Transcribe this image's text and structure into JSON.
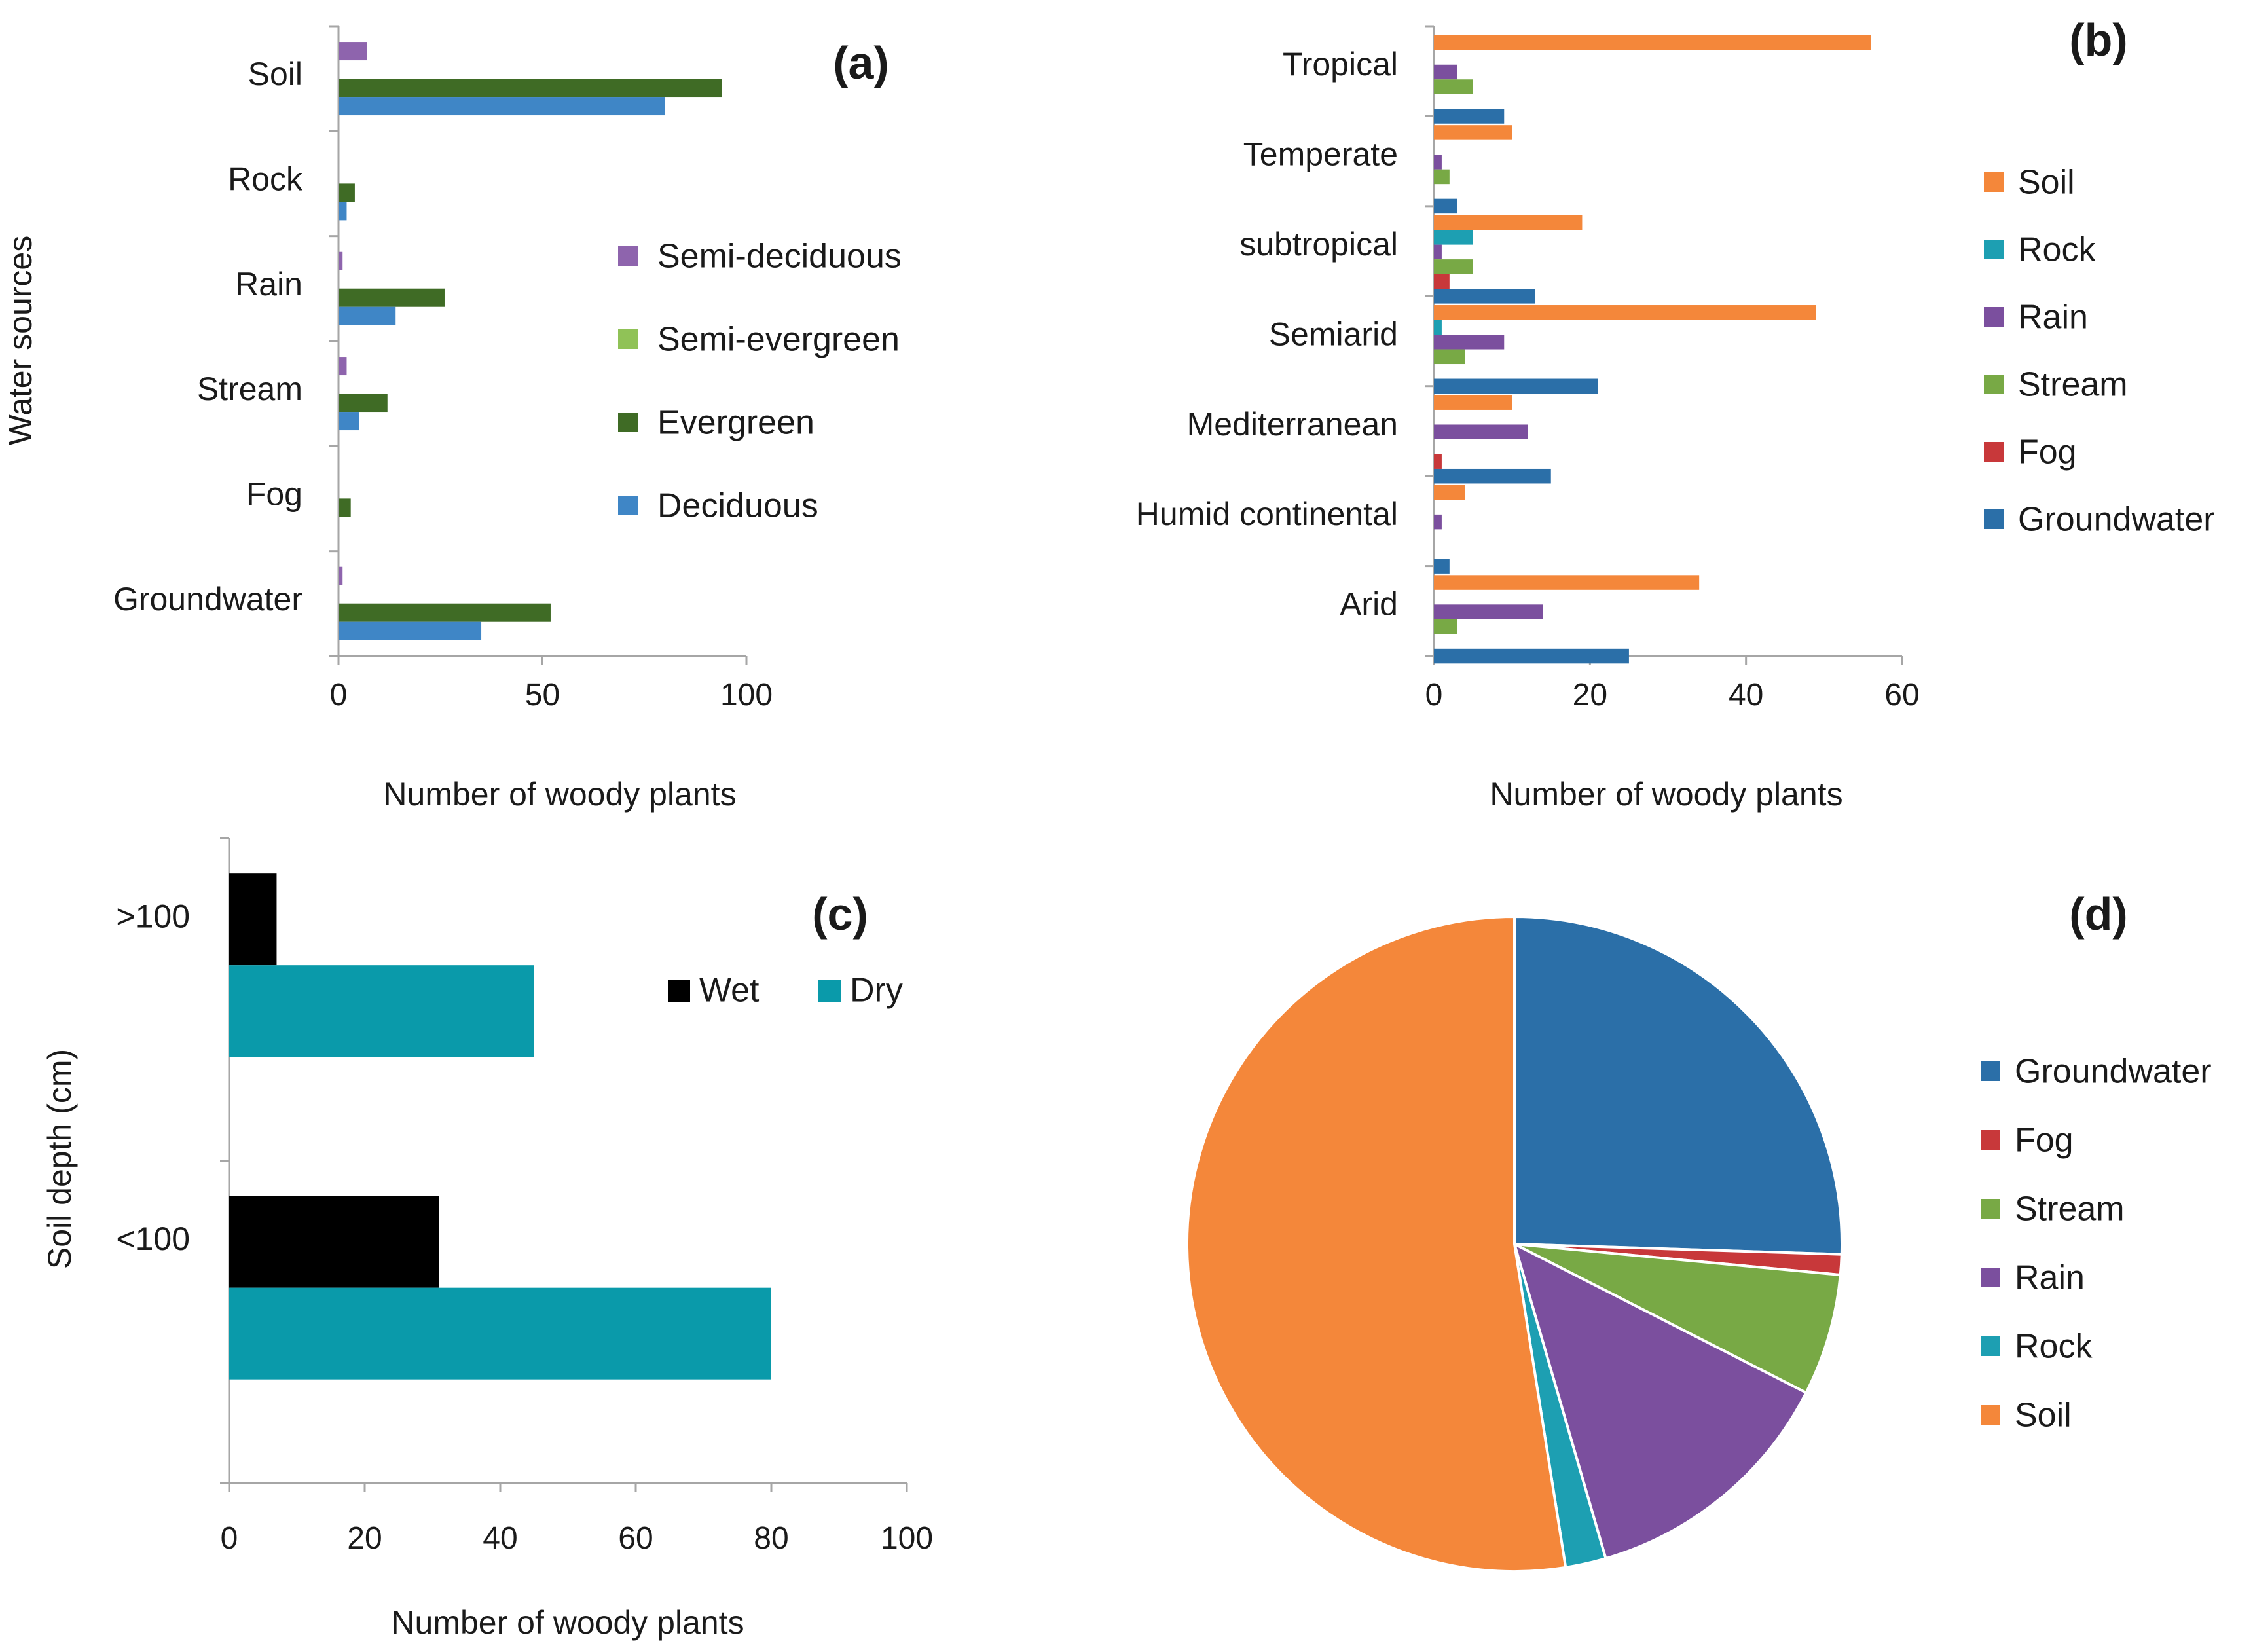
{
  "colors": {
    "semi_deciduous": "#8e64ad",
    "semi_evergreen": "#90c257",
    "evergreen": "#3f6b25",
    "deciduous": "#3f86c6",
    "soil": "#f4873a",
    "rock": "#1d9fb2",
    "rain": "#7b4f9e",
    "stream": "#78a945",
    "fog": "#c8383a",
    "groundwater": "#2b6fa8",
    "wet": "#000000",
    "dry": "#0a9aaa"
  },
  "chart_data": [
    {
      "id": "a",
      "type": "bar",
      "orientation": "horizontal",
      "panel_label": "(a)",
      "categories": [
        "Soil",
        "Rock",
        "Rain",
        "Stream",
        "Fog",
        "Groundwater"
      ],
      "series": [
        {
          "name": "Semi-deciduous",
          "color_key": "semi_deciduous",
          "values": [
            7,
            0,
            1,
            2,
            0,
            1
          ]
        },
        {
          "name": "Semi-evergreen",
          "color_key": "semi_evergreen",
          "values": [
            0,
            0,
            0,
            0,
            0,
            0
          ]
        },
        {
          "name": "Evergreen",
          "color_key": "evergreen",
          "values": [
            94,
            4,
            26,
            12,
            3,
            52
          ]
        },
        {
          "name": "Deciduous",
          "color_key": "deciduous",
          "values": [
            80,
            2,
            14,
            5,
            0,
            35
          ]
        }
      ],
      "legend": [
        "Semi-deciduous",
        "Semi-evergreen",
        "Evergreen",
        "Deciduous"
      ],
      "xlabel": "Number of woody plants",
      "ylabel": "Water sources",
      "xlim": [
        0,
        100
      ],
      "xticks": [
        "0",
        "50",
        "100"
      ]
    },
    {
      "id": "b",
      "type": "bar",
      "orientation": "horizontal",
      "panel_label": "(b)",
      "categories": [
        "Tropical",
        "Temperate",
        "subtropical",
        "Semiarid",
        "Mediterranean",
        "Humid continental",
        "Arid"
      ],
      "series": [
        {
          "name": "Soil",
          "color_key": "soil",
          "values": [
            56,
            10,
            19,
            49,
            10,
            4,
            34
          ]
        },
        {
          "name": "Rock",
          "color_key": "rock",
          "values": [
            0,
            0,
            5,
            1,
            0,
            0,
            0
          ]
        },
        {
          "name": "Rain",
          "color_key": "rain",
          "values": [
            3,
            1,
            1,
            9,
            12,
            1,
            14
          ]
        },
        {
          "name": "Stream",
          "color_key": "stream",
          "values": [
            5,
            2,
            5,
            4,
            0,
            0,
            3
          ]
        },
        {
          "name": "Fog",
          "color_key": "fog",
          "values": [
            0,
            0,
            2,
            0,
            1,
            0,
            0
          ]
        },
        {
          "name": "Groundwater",
          "color_key": "groundwater",
          "values": [
            9,
            3,
            13,
            21,
            15,
            2,
            25
          ]
        }
      ],
      "legend": [
        "Soil",
        "Rock",
        "Rain",
        "Stream",
        "Fog",
        "Groundwater"
      ],
      "xlabel": "Number of woody plants",
      "xlim": [
        0,
        60
      ],
      "xticks": [
        "0",
        "20",
        "40",
        "60"
      ]
    },
    {
      "id": "c",
      "type": "bar",
      "orientation": "horizontal",
      "panel_label": "(c)",
      "categories": [
        ">100",
        "<100"
      ],
      "series": [
        {
          "name": "Wet",
          "color_key": "wet",
          "values": [
            7,
            31
          ]
        },
        {
          "name": "Dry",
          "color_key": "dry",
          "values": [
            45,
            80
          ]
        }
      ],
      "legend": [
        "Wet",
        "Dry"
      ],
      "xlabel": "Number of woody plants",
      "ylabel": "Soil depth (cm)",
      "xlim": [
        0,
        100
      ],
      "xticks": [
        "0",
        "20",
        "40",
        "60",
        "80",
        "100"
      ]
    },
    {
      "id": "d",
      "type": "pie",
      "panel_label": "(d)",
      "slices": [
        {
          "label": "Groundwater",
          "color_key": "groundwater",
          "value": 25.5
        },
        {
          "label": "Fog",
          "color_key": "fog",
          "value": 1.0
        },
        {
          "label": "Stream",
          "color_key": "stream",
          "value": 6.0
        },
        {
          "label": "Rain",
          "color_key": "rain",
          "value": 13.0
        },
        {
          "label": "Rock",
          "color_key": "rock",
          "value": 2.0
        },
        {
          "label": "Soil",
          "color_key": "soil",
          "value": 52.5
        }
      ],
      "legend": [
        "Groundwater",
        "Fog",
        "Stream",
        "Rain",
        "Rock",
        "Soil"
      ]
    }
  ]
}
